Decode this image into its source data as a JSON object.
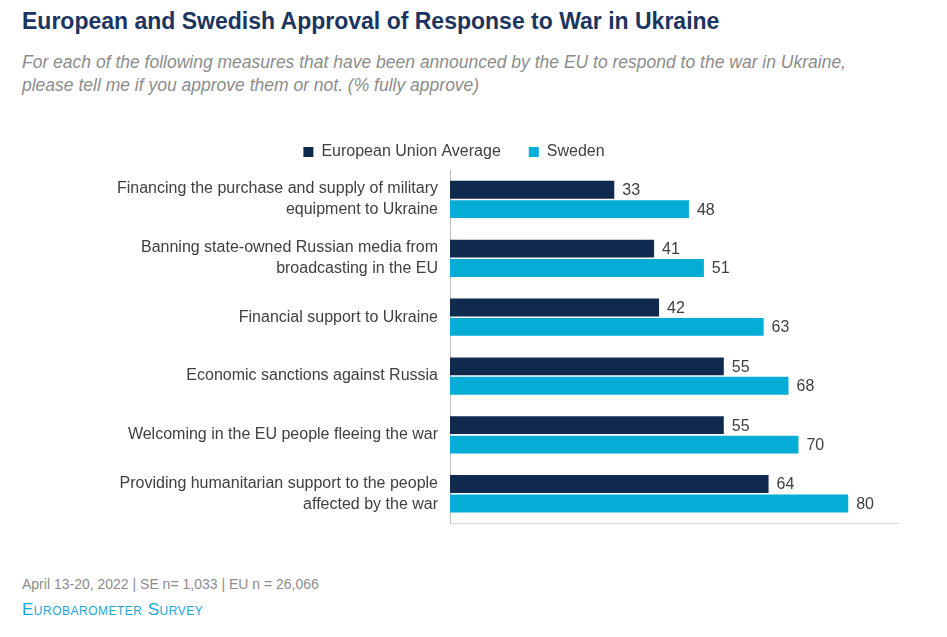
{
  "chart_data": {
    "type": "bar",
    "title": "European and Swedish Approval of Response to War in Ukraine",
    "subtitle": "For each of the following measures that have been announced by the EU to respond to the war in Ukraine, please tell me if you approve them or not. (% fully approve)",
    "orientation": "horizontal",
    "categories": [
      "Financing the purchase and supply of military equipment to Ukraine",
      "Banning state-owned Russian media from broadcasting in the EU",
      "Financial support to Ukraine",
      "Economic sanctions against Russia",
      "Welcoming in the EU people fleeing the war",
      "Providing humanitarian support to the people affected by the war"
    ],
    "series": [
      {
        "name": "European Union Average",
        "color": "#10294f",
        "values": [
          33,
          41,
          42,
          55,
          55,
          64
        ]
      },
      {
        "name": "Sweden",
        "color": "#05acd6",
        "values": [
          48,
          51,
          63,
          68,
          70,
          80
        ]
      }
    ],
    "xlim": [
      0,
      90
    ],
    "grid": false,
    "legend": "top",
    "data_labels": true,
    "tick_labels": "y",
    "annotations": [
      "April 13-20, 2022 | SE n= 1,033 | EU n = 26,066",
      "Eurobarometer Survey"
    ]
  }
}
